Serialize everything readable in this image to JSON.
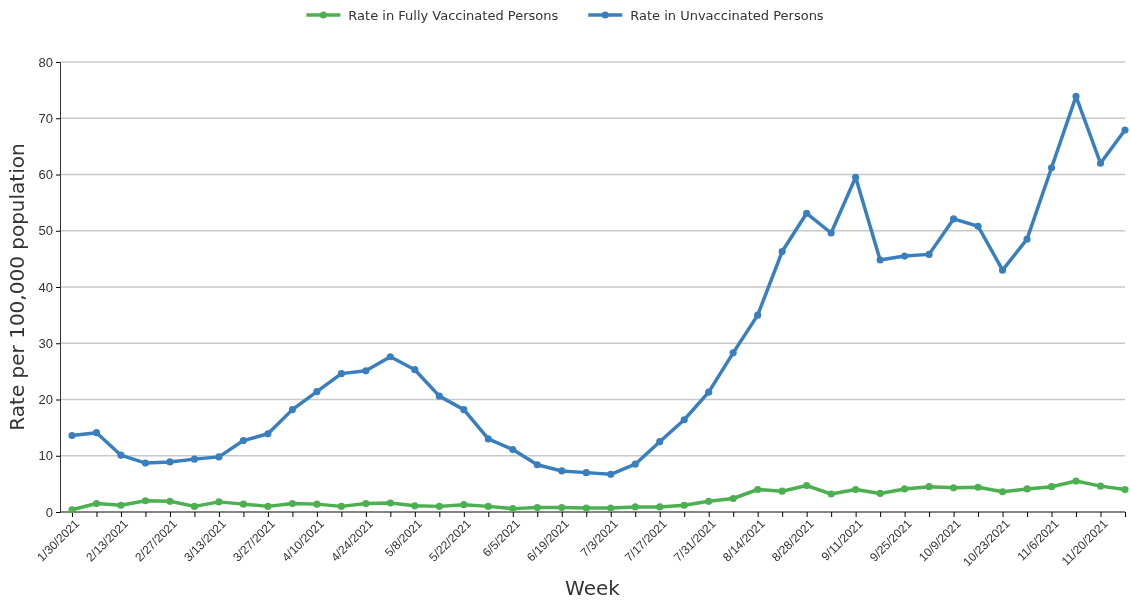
{
  "chart_data": {
    "type": "line",
    "xlabel": "Week",
    "ylabel": "Rate per 100,000 population",
    "categories": [
      "1/30/2021",
      null,
      "2/13/2021",
      null,
      "2/27/2021",
      null,
      "3/13/2021",
      null,
      "3/27/2021",
      null,
      "4/10/2021",
      null,
      "4/24/2021",
      null,
      "5/8/2021",
      null,
      "5/22/2021",
      null,
      "6/5/2021",
      null,
      "6/19/2021",
      null,
      "7/3/2021",
      null,
      "7/17/2021",
      null,
      "7/31/2021",
      null,
      "8/14/2021",
      null,
      "8/28/2021",
      null,
      "9/11/2021",
      null,
      "9/25/2021",
      null,
      "10/9/2021",
      null,
      "10/23/2021",
      null,
      "11/6/2021",
      null,
      "11/20/2021",
      null
    ],
    "series": [
      {
        "name": "Rate in Fully Vaccinated Persons",
        "color": "#4caf50",
        "values": [
          0.4,
          1.5,
          1.2,
          2.0,
          1.9,
          1.0,
          1.8,
          1.4,
          1.0,
          1.5,
          1.4,
          1.0,
          1.5,
          1.6,
          1.1,
          1.0,
          1.3,
          1.0,
          0.6,
          0.8,
          0.8,
          0.7,
          0.7,
          0.9,
          0.9,
          1.2,
          1.9,
          2.4,
          4.0,
          3.7,
          4.7,
          3.2,
          4.0,
          3.3,
          4.1,
          4.5,
          4.3,
          4.4,
          3.6,
          4.1,
          4.5,
          5.5,
          4.6,
          4.0
        ]
      },
      {
        "name": "Rate in Unvaccinated Persons",
        "color": "#3a7fbd",
        "values": [
          13.6,
          14.1,
          10.1,
          8.7,
          8.9,
          9.4,
          9.8,
          12.7,
          13.9,
          18.2,
          21.4,
          24.6,
          25.1,
          27.6,
          25.3,
          20.6,
          18.2,
          13.0,
          11.1,
          8.4,
          7.3,
          7.0,
          6.7,
          8.5,
          12.5,
          16.4,
          21.3,
          28.3,
          35.0,
          46.3,
          53.1,
          49.6,
          59.5,
          44.8,
          45.5,
          45.8,
          52.1,
          50.8,
          43.0,
          48.5,
          61.2,
          73.9,
          62.0,
          67.9
        ]
      }
    ],
    "ylim": [
      0,
      80
    ],
    "yticks": [
      0,
      10,
      20,
      30,
      40,
      50,
      60,
      70,
      80
    ],
    "grid": "y",
    "legend": "top",
    "marker": "circle",
    "line_style": "solid"
  }
}
